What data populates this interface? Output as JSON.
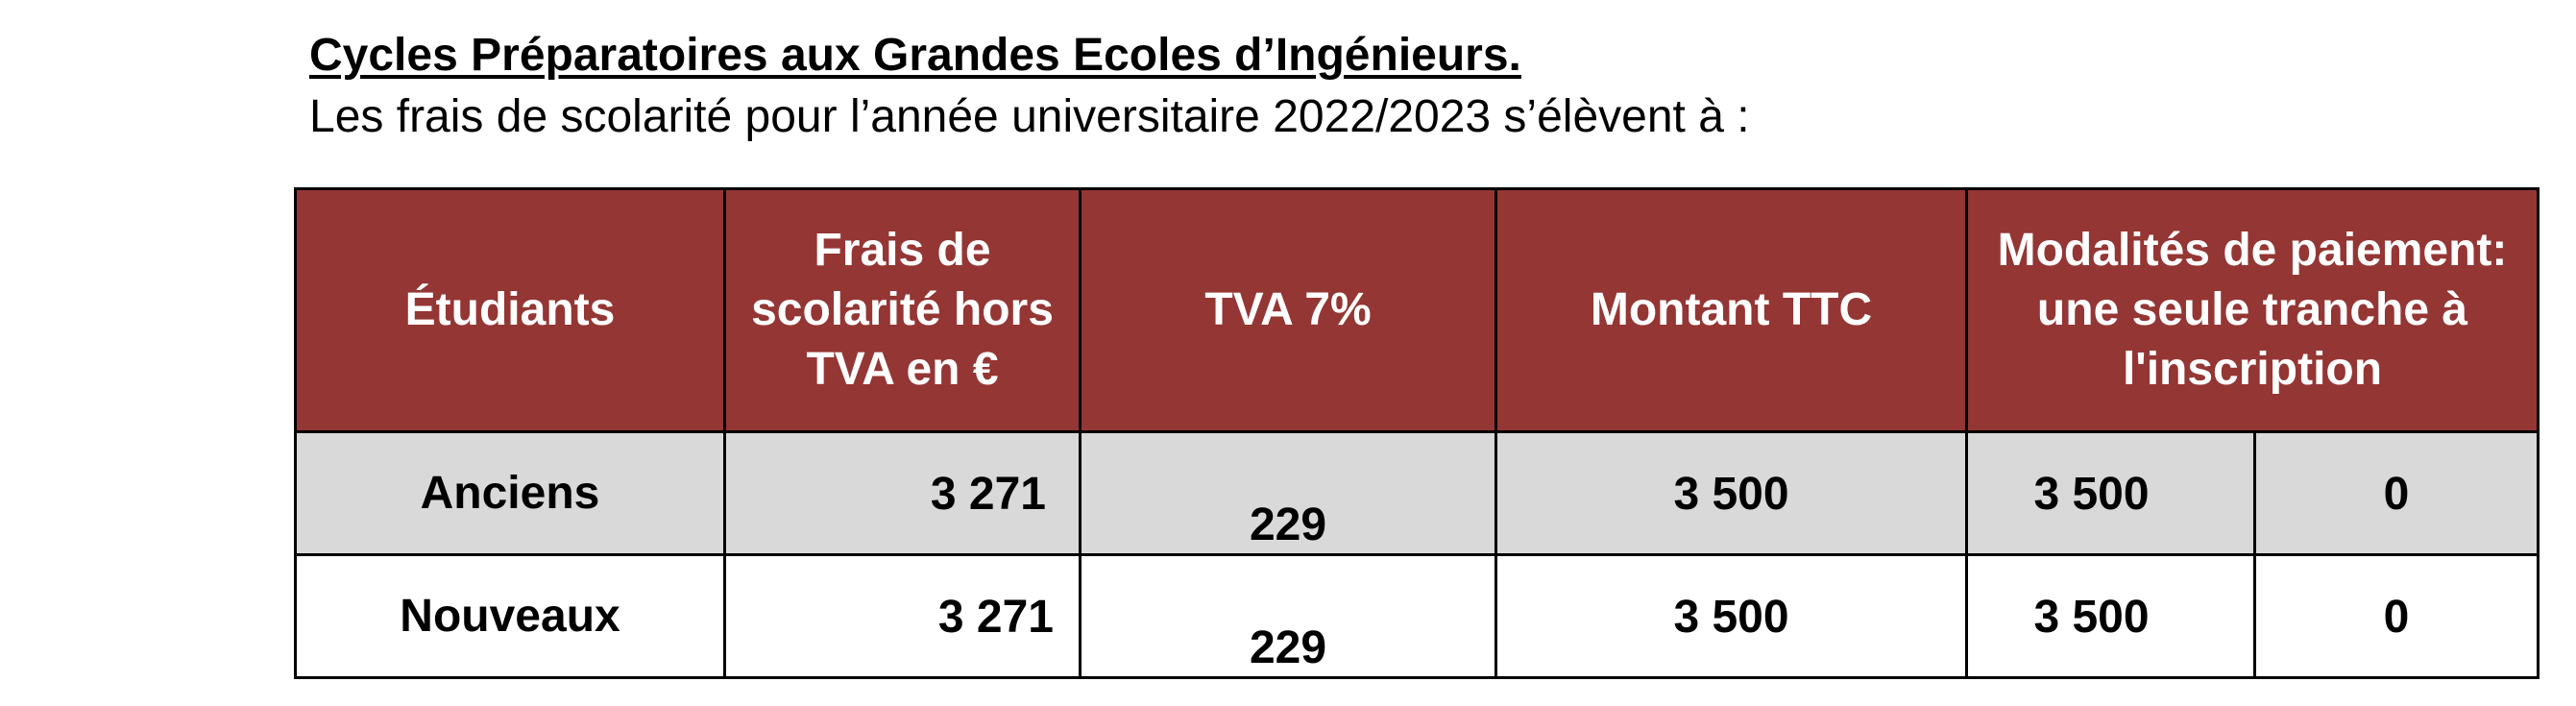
{
  "heading": {
    "title": "Cycles Préparatoires aux Grandes Ecoles d’Ingénieurs.",
    "subtitle": "Les frais de scolarité pour l’année universitaire 2022/2023 s’élèvent à :"
  },
  "table": {
    "headers": {
      "students": "Étudiants",
      "fees_ht": "Frais de scolarité hors TVA en €",
      "tva": "TVA 7%",
      "ttc": "Montant TTC",
      "payment": "Modalités de paiement: une seule tranche à l'inscription"
    },
    "rows": [
      {
        "student": "Anciens",
        "fees_ht": "3 271",
        "tva": "229",
        "ttc": "3 500",
        "payment_1": "3 500",
        "payment_2": "0"
      },
      {
        "student": "Nouveaux",
        "fees_ht": "3 271",
        "tva": "229",
        "ttc": "3 500",
        "payment_1": "3 500",
        "payment_2": "0"
      }
    ]
  },
  "colors": {
    "header_background": "#943634",
    "header_text": "#ffffff",
    "shaded_row": "#d9d9d9",
    "border": "#000000"
  }
}
